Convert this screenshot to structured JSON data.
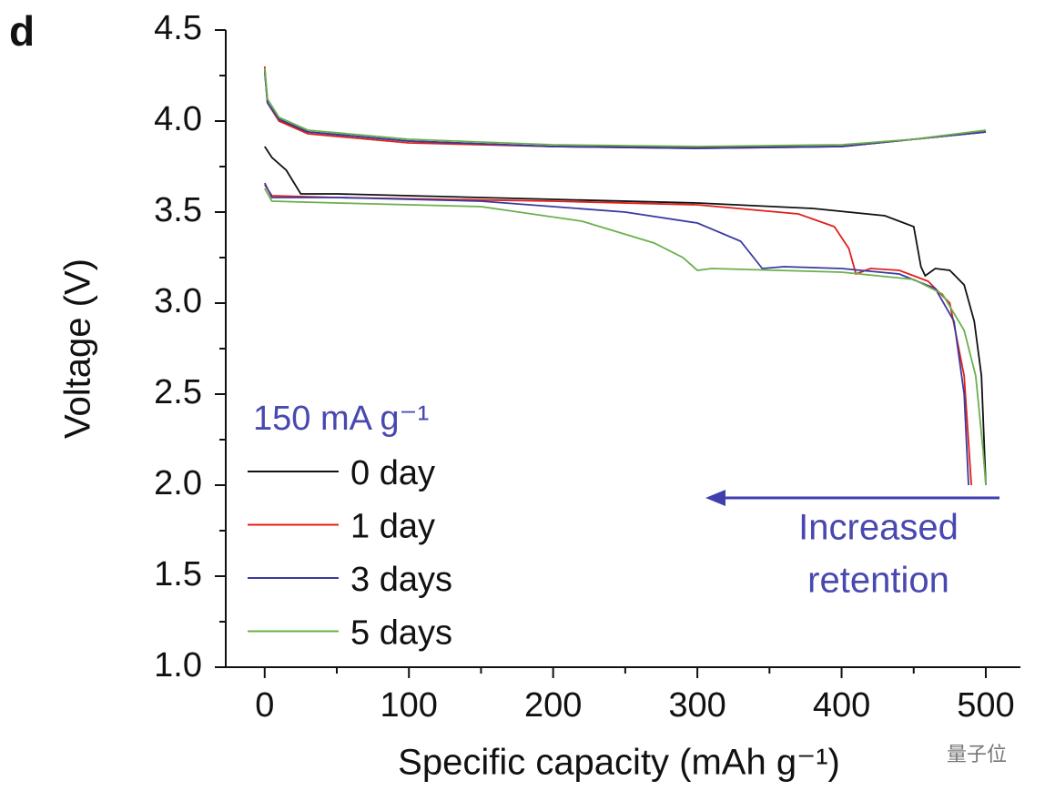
{
  "chart_data": {
    "type": "line",
    "panel_label": "d",
    "xlabel": "Specific capacity (mAh g⁻¹)",
    "ylabel": "Voltage (V)",
    "xlim": [
      -27,
      524
    ],
    "ylim": [
      1.0,
      4.5
    ],
    "xticks": [
      0,
      100,
      200,
      300,
      400,
      500
    ],
    "xminorticks": [
      50,
      150,
      250,
      350,
      450
    ],
    "yticks": [
      {
        "value": 1.0,
        "label": "1.0"
      },
      1.5,
      {
        "value": 2.0,
        "label": "2.0"
      },
      2.5,
      {
        "value": 3.0,
        "label": "3.0"
      },
      3.5,
      {
        "value": 4.0,
        "label": "4.0"
      },
      4.5
    ],
    "yminorticks": [
      1.25,
      1.75,
      2.25,
      2.75,
      3.25,
      3.75,
      4.25
    ],
    "legend_title": "150 mA g⁻¹",
    "annotation_lines": [
      "Increased",
      "retention"
    ],
    "watermark": "量子位",
    "series": [
      {
        "name": "0 day",
        "color": "#111111",
        "x": [
          0,
          2,
          10,
          30,
          100,
          200,
          300,
          400,
          450,
          500,
          null,
          0,
          5,
          15,
          25,
          50,
          100,
          200,
          300,
          380,
          430,
          450,
          455,
          458,
          465,
          475,
          485,
          492,
          497,
          500
        ],
        "values": [
          4.28,
          4.1,
          4.0,
          3.94,
          3.89,
          3.86,
          3.855,
          3.86,
          3.9,
          3.94,
          null,
          3.86,
          3.8,
          3.73,
          3.6,
          3.6,
          3.59,
          3.57,
          3.55,
          3.52,
          3.48,
          3.42,
          3.2,
          3.15,
          3.19,
          3.18,
          3.1,
          2.9,
          2.6,
          2.0
        ]
      },
      {
        "name": "1 day",
        "color": "#e0201b",
        "x": [
          0,
          2,
          10,
          30,
          100,
          200,
          300,
          400,
          450,
          500,
          null,
          0,
          5,
          50,
          200,
          300,
          370,
          395,
          405,
          410,
          420,
          440,
          460,
          475,
          485,
          490
        ],
        "values": [
          4.3,
          4.1,
          4.0,
          3.93,
          3.88,
          3.86,
          3.85,
          3.86,
          3.9,
          3.94,
          null,
          3.65,
          3.59,
          3.58,
          3.56,
          3.54,
          3.49,
          3.42,
          3.3,
          3.16,
          3.19,
          3.18,
          3.12,
          3.0,
          2.6,
          2.0
        ]
      },
      {
        "name": "3 days",
        "color": "#3a3aa0",
        "x": [
          0,
          2,
          10,
          30,
          100,
          200,
          300,
          400,
          450,
          500,
          null,
          0,
          5,
          50,
          150,
          250,
          300,
          330,
          340,
          345,
          360,
          400,
          440,
          465,
          478,
          485,
          488
        ],
        "values": [
          4.27,
          4.1,
          4.01,
          3.94,
          3.89,
          3.86,
          3.85,
          3.86,
          3.9,
          3.94,
          null,
          3.66,
          3.58,
          3.58,
          3.56,
          3.5,
          3.44,
          3.34,
          3.24,
          3.19,
          3.2,
          3.19,
          3.16,
          3.08,
          2.9,
          2.5,
          2.0
        ]
      },
      {
        "name": "5 days",
        "color": "#6ab04c",
        "x": [
          0,
          2,
          10,
          30,
          100,
          200,
          300,
          400,
          450,
          500,
          null,
          0,
          5,
          50,
          150,
          220,
          270,
          290,
          300,
          310,
          400,
          450,
          470,
          485,
          493,
          498,
          500
        ],
        "values": [
          4.29,
          4.12,
          4.02,
          3.95,
          3.9,
          3.87,
          3.86,
          3.87,
          3.9,
          3.95,
          null,
          3.63,
          3.56,
          3.55,
          3.53,
          3.45,
          3.33,
          3.25,
          3.18,
          3.19,
          3.17,
          3.13,
          3.05,
          2.85,
          2.6,
          2.2,
          2.0
        ]
      }
    ]
  }
}
